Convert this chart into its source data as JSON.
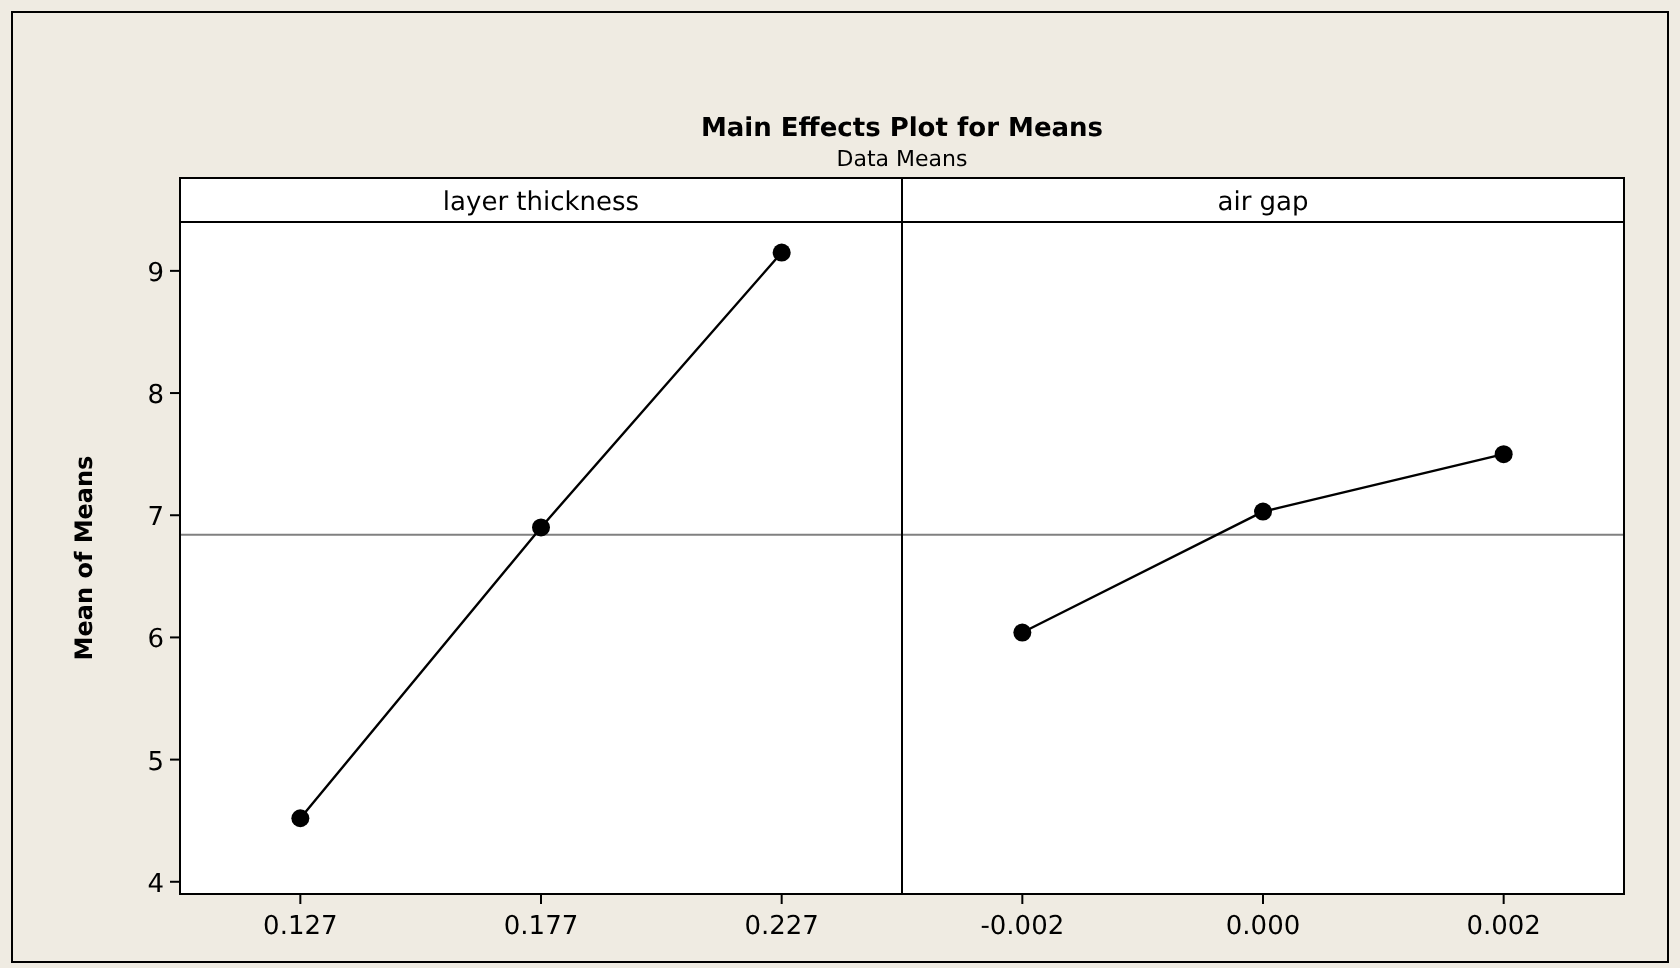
{
  "chart_data": [
    {
      "type": "line",
      "title": "Main Effects Plot for Means",
      "subtitle": "Data Means",
      "xlabel": "layer thickness",
      "ylabel": "Mean of Means",
      "categories": [
        "0.127",
        "0.177",
        "0.227"
      ],
      "values": [
        4.52,
        6.9,
        9.15
      ],
      "color": "#000000",
      "marker": "circle",
      "ylim": [
        3.9,
        9.4
      ],
      "yticks": [
        4,
        5,
        6,
        7,
        8,
        9
      ],
      "ref_lines": [
        {
          "axis": "y",
          "value": 6.84,
          "color": "#808080"
        }
      ],
      "tick_labels": "xy"
    },
    {
      "type": "line",
      "xlabel": "air gap",
      "categories": [
        "-0.002",
        "0.000",
        "0.002"
      ],
      "values": [
        6.04,
        7.03,
        7.5
      ],
      "color": "#000000",
      "marker": "circle",
      "ylim": [
        3.9,
        9.4
      ],
      "yticks": [
        4,
        5,
        6,
        7,
        8,
        9
      ],
      "ref_lines": [
        {
          "axis": "y",
          "value": 6.84,
          "color": "#808080"
        }
      ],
      "tick_labels": "x"
    }
  ]
}
